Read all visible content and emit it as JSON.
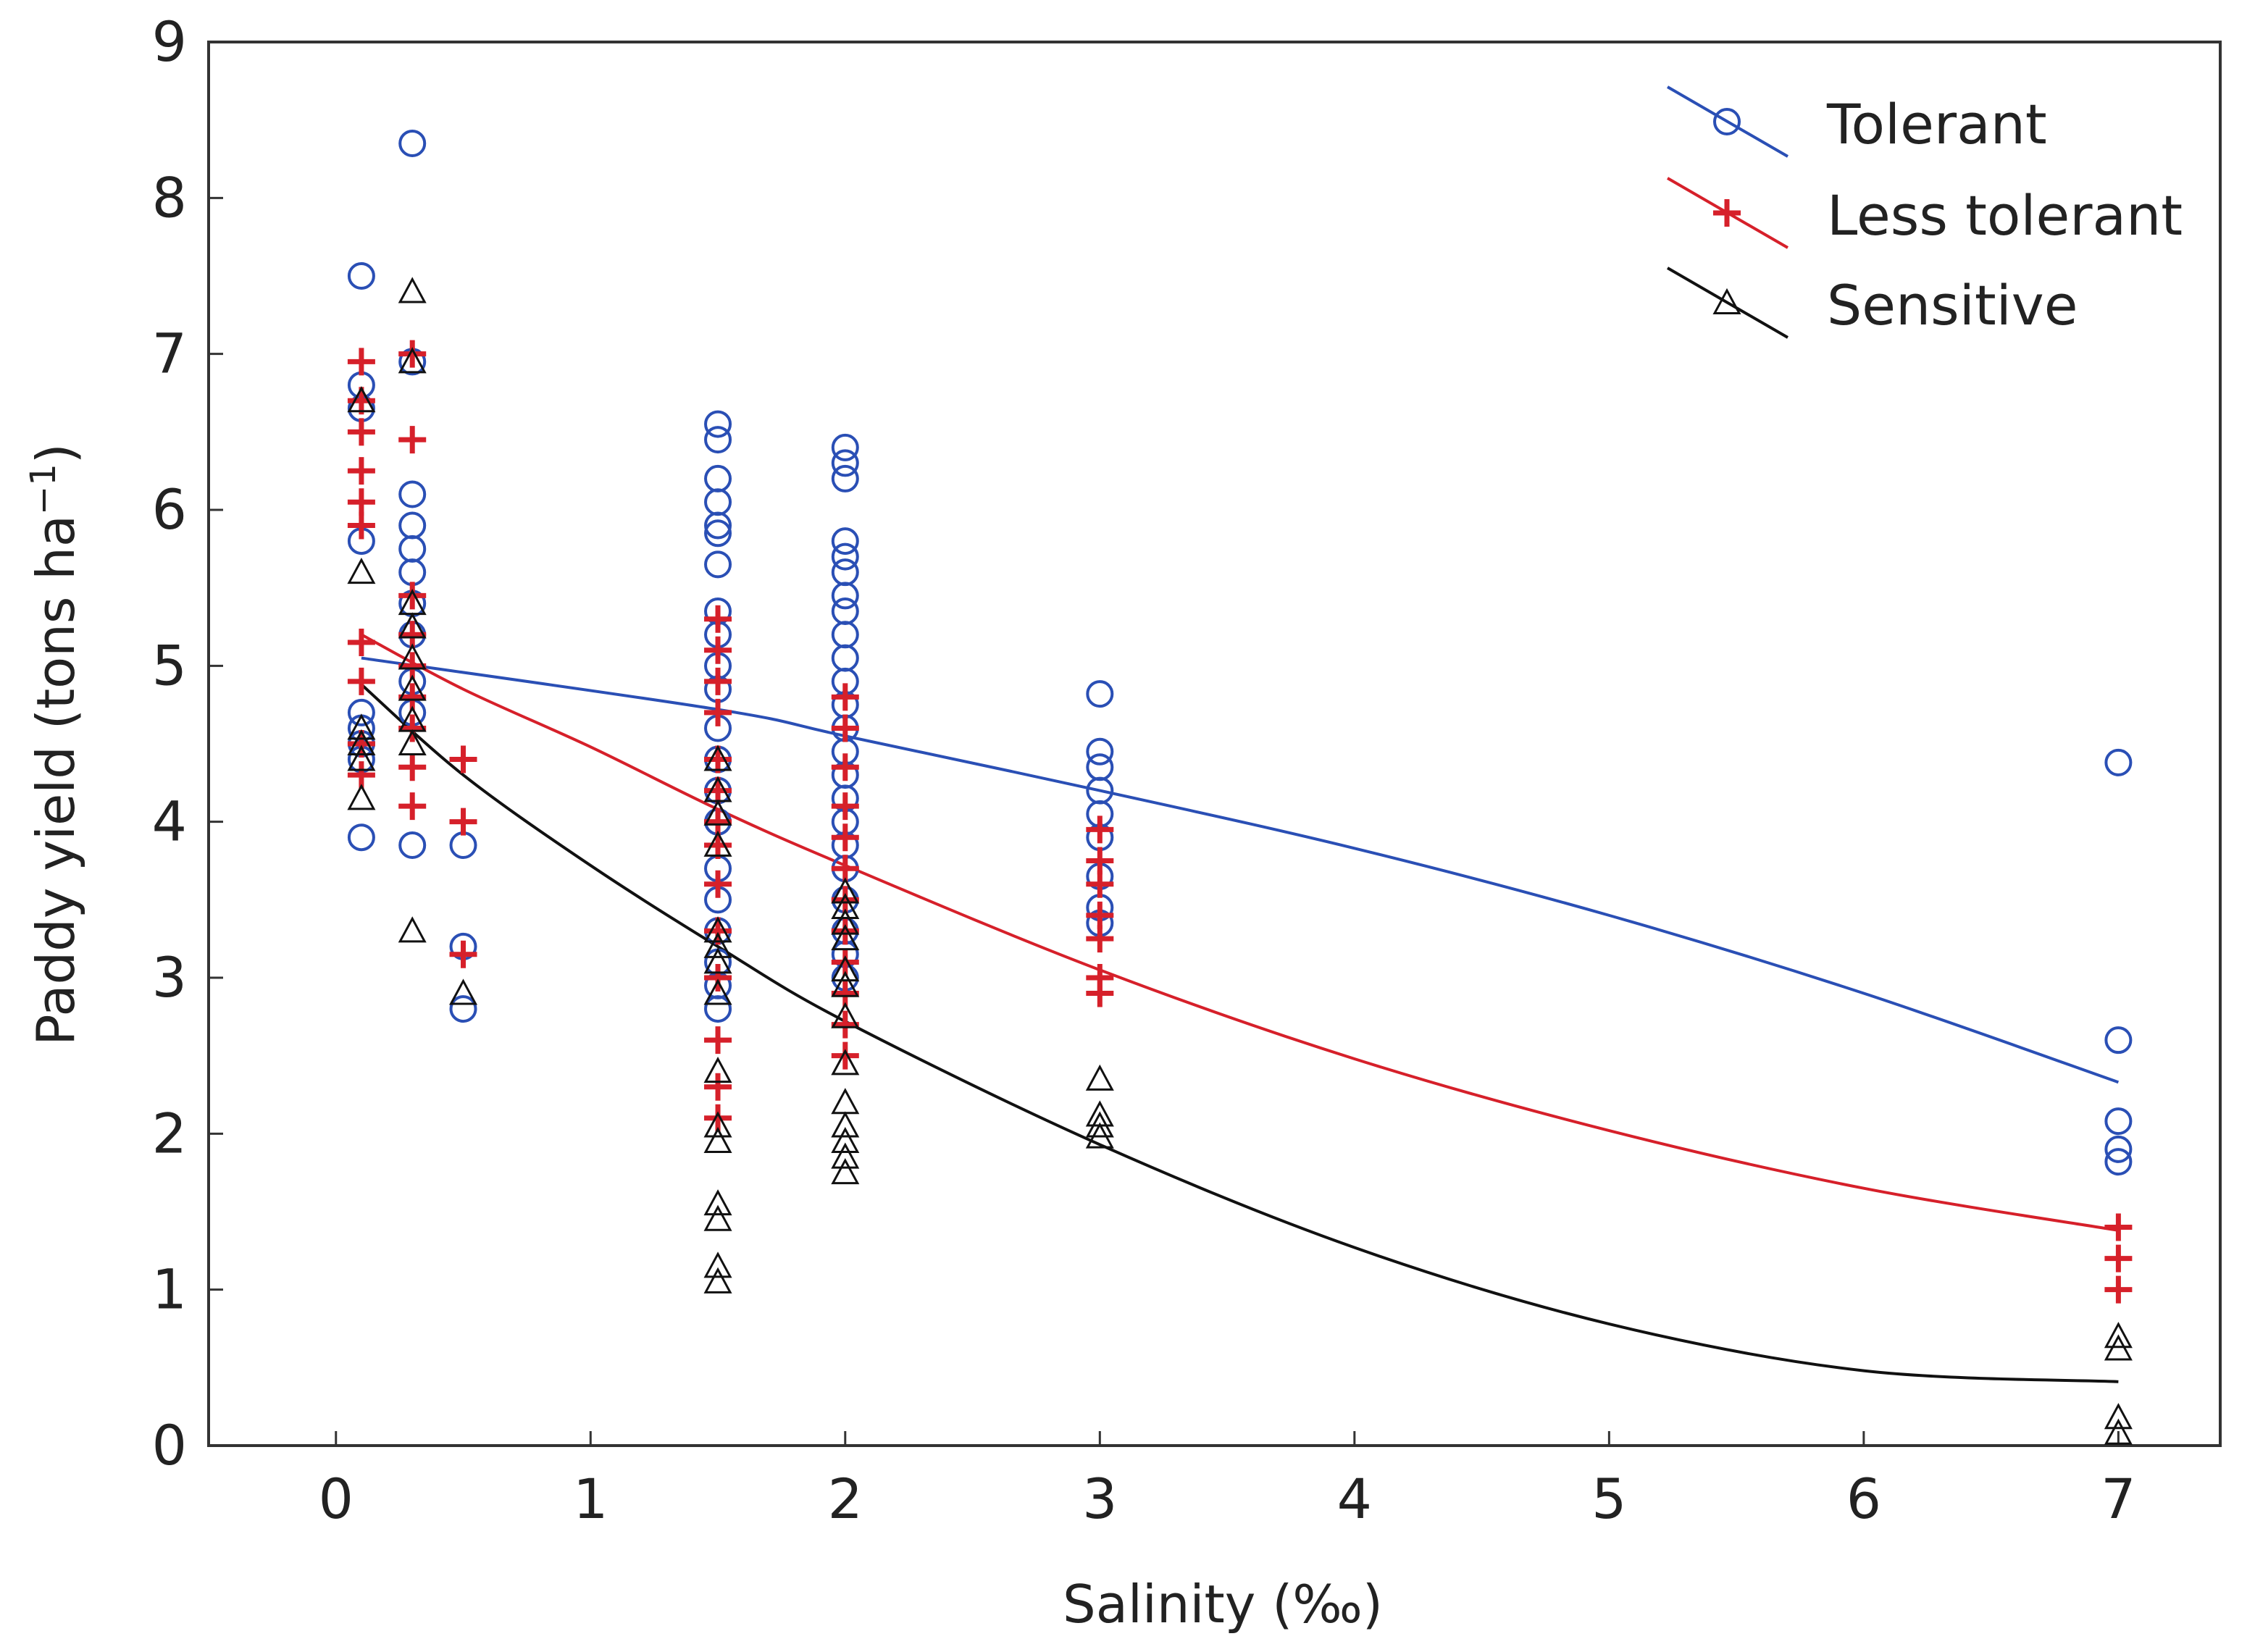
{
  "chart_data": {
    "type": "scatter",
    "title": "",
    "xlabel": "Salinity (‰)",
    "ylabel": "Paddy yield (tons ha",
    "ylabel_superscript": "−1",
    "ylabel_close": ")",
    "xlim": [
      -0.5,
      7.4
    ],
    "ylim": [
      0,
      9
    ],
    "xticks": [
      0,
      1,
      2,
      3,
      4,
      5,
      6,
      7
    ],
    "yticks": [
      0,
      1,
      2,
      3,
      4,
      5,
      6,
      7,
      8,
      9
    ],
    "legend_position": "top-right",
    "series": [
      {
        "name": "Tolerant",
        "color": "#2a4fb5",
        "marker": "circle",
        "points": [
          [
            0.1,
            7.5
          ],
          [
            0.1,
            6.8
          ],
          [
            0.1,
            6.65
          ],
          [
            0.1,
            5.8
          ],
          [
            0.1,
            4.7
          ],
          [
            0.1,
            4.6
          ],
          [
            0.1,
            4.5
          ],
          [
            0.1,
            4.4
          ],
          [
            0.1,
            3.9
          ],
          [
            0.3,
            8.35
          ],
          [
            0.3,
            6.95
          ],
          [
            0.3,
            6.1
          ],
          [
            0.3,
            5.9
          ],
          [
            0.3,
            5.75
          ],
          [
            0.3,
            5.6
          ],
          [
            0.3,
            5.4
          ],
          [
            0.3,
            5.2
          ],
          [
            0.3,
            4.9
          ],
          [
            0.3,
            4.7
          ],
          [
            0.3,
            3.85
          ],
          [
            0.5,
            3.85
          ],
          [
            0.5,
            3.2
          ],
          [
            0.5,
            2.8
          ],
          [
            1.5,
            6.55
          ],
          [
            1.5,
            6.45
          ],
          [
            1.5,
            6.2
          ],
          [
            1.5,
            6.05
          ],
          [
            1.5,
            5.9
          ],
          [
            1.5,
            5.85
          ],
          [
            1.5,
            5.65
          ],
          [
            1.5,
            5.35
          ],
          [
            1.5,
            5.2
          ],
          [
            1.5,
            5.0
          ],
          [
            1.5,
            4.85
          ],
          [
            1.5,
            4.6
          ],
          [
            1.5,
            4.4
          ],
          [
            1.5,
            4.2
          ],
          [
            1.5,
            4.0
          ],
          [
            1.5,
            3.7
          ],
          [
            1.5,
            3.5
          ],
          [
            1.5,
            3.3
          ],
          [
            1.5,
            3.1
          ],
          [
            1.5,
            2.95
          ],
          [
            1.5,
            2.8
          ],
          [
            2.0,
            6.4
          ],
          [
            2.0,
            6.3
          ],
          [
            2.0,
            6.2
          ],
          [
            2.0,
            5.8
          ],
          [
            2.0,
            5.7
          ],
          [
            2.0,
            5.6
          ],
          [
            2.0,
            5.45
          ],
          [
            2.0,
            5.35
          ],
          [
            2.0,
            5.2
          ],
          [
            2.0,
            5.05
          ],
          [
            2.0,
            4.9
          ],
          [
            2.0,
            4.75
          ],
          [
            2.0,
            4.6
          ],
          [
            2.0,
            4.45
          ],
          [
            2.0,
            4.3
          ],
          [
            2.0,
            4.15
          ],
          [
            2.0,
            4.0
          ],
          [
            2.0,
            3.85
          ],
          [
            2.0,
            3.7
          ],
          [
            2.0,
            3.5
          ],
          [
            2.0,
            3.3
          ],
          [
            2.0,
            3.15
          ],
          [
            2.0,
            3.0
          ],
          [
            3.0,
            4.82
          ],
          [
            3.0,
            4.45
          ],
          [
            3.0,
            4.35
          ],
          [
            3.0,
            4.2
          ],
          [
            3.0,
            4.05
          ],
          [
            3.0,
            3.9
          ],
          [
            3.0,
            3.65
          ],
          [
            3.0,
            3.45
          ],
          [
            3.0,
            3.35
          ],
          [
            7.0,
            4.38
          ],
          [
            7.0,
            2.6
          ],
          [
            7.0,
            2.08
          ],
          [
            7.0,
            1.9
          ],
          [
            7.0,
            1.82
          ]
        ],
        "fit": [
          [
            0.1,
            5.05
          ],
          [
            1.5,
            4.72
          ],
          [
            2.0,
            4.55
          ],
          [
            3.0,
            4.2
          ],
          [
            4.0,
            3.83
          ],
          [
            5.0,
            3.4
          ],
          [
            6.0,
            2.9
          ],
          [
            7.0,
            2.33
          ]
        ]
      },
      {
        "name": "Less tolerant",
        "color": "#d6202a",
        "marker": "plus",
        "points": [
          [
            0.1,
            6.95
          ],
          [
            0.1,
            6.7
          ],
          [
            0.1,
            6.5
          ],
          [
            0.1,
            6.25
          ],
          [
            0.1,
            6.05
          ],
          [
            0.1,
            5.9
          ],
          [
            0.1,
            5.15
          ],
          [
            0.1,
            4.9
          ],
          [
            0.1,
            4.5
          ],
          [
            0.1,
            4.3
          ],
          [
            0.3,
            7.0
          ],
          [
            0.3,
            6.45
          ],
          [
            0.3,
            5.45
          ],
          [
            0.3,
            5.2
          ],
          [
            0.3,
            5.0
          ],
          [
            0.3,
            4.8
          ],
          [
            0.3,
            4.6
          ],
          [
            0.3,
            4.35
          ],
          [
            0.3,
            4.1
          ],
          [
            0.5,
            4.4
          ],
          [
            0.5,
            4.0
          ],
          [
            0.5,
            3.15
          ],
          [
            1.5,
            5.3
          ],
          [
            1.5,
            5.1
          ],
          [
            1.5,
            4.9
          ],
          [
            1.5,
            4.7
          ],
          [
            1.5,
            4.4
          ],
          [
            1.5,
            4.2
          ],
          [
            1.5,
            4.0
          ],
          [
            1.5,
            3.85
          ],
          [
            1.5,
            3.6
          ],
          [
            1.5,
            3.3
          ],
          [
            1.5,
            3.0
          ],
          [
            1.5,
            2.6
          ],
          [
            1.5,
            2.3
          ],
          [
            1.5,
            2.1
          ],
          [
            2.0,
            4.8
          ],
          [
            2.0,
            4.6
          ],
          [
            2.0,
            4.35
          ],
          [
            2.0,
            4.1
          ],
          [
            2.0,
            3.9
          ],
          [
            2.0,
            3.7
          ],
          [
            2.0,
            3.5
          ],
          [
            2.0,
            3.3
          ],
          [
            2.0,
            3.1
          ],
          [
            2.0,
            2.9
          ],
          [
            2.0,
            2.7
          ],
          [
            2.0,
            2.5
          ],
          [
            3.0,
            3.95
          ],
          [
            3.0,
            3.75
          ],
          [
            3.0,
            3.6
          ],
          [
            3.0,
            3.4
          ],
          [
            3.0,
            3.25
          ],
          [
            3.0,
            3.0
          ],
          [
            3.0,
            2.9
          ],
          [
            7.0,
            1.4
          ],
          [
            7.0,
            1.2
          ],
          [
            7.0,
            1.0
          ]
        ],
        "fit": [
          [
            0.1,
            5.2
          ],
          [
            0.5,
            4.85
          ],
          [
            1.0,
            4.48
          ],
          [
            1.5,
            4.08
          ],
          [
            2.0,
            3.72
          ],
          [
            3.0,
            3.05
          ],
          [
            4.0,
            2.48
          ],
          [
            5.0,
            2.02
          ],
          [
            6.0,
            1.65
          ],
          [
            7.0,
            1.38
          ]
        ]
      },
      {
        "name": "Sensitive",
        "color": "#111111",
        "marker": "triangle",
        "points": [
          [
            0.1,
            6.7
          ],
          [
            0.1,
            5.6
          ],
          [
            0.1,
            4.6
          ],
          [
            0.1,
            4.5
          ],
          [
            0.1,
            4.4
          ],
          [
            0.1,
            4.15
          ],
          [
            0.3,
            7.4
          ],
          [
            0.3,
            6.95
          ],
          [
            0.3,
            5.4
          ],
          [
            0.3,
            5.25
          ],
          [
            0.3,
            5.05
          ],
          [
            0.3,
            4.85
          ],
          [
            0.3,
            4.65
          ],
          [
            0.3,
            4.5
          ],
          [
            0.3,
            3.3
          ],
          [
            0.5,
            2.9
          ],
          [
            1.5,
            4.4
          ],
          [
            1.5,
            4.2
          ],
          [
            1.5,
            4.05
          ],
          [
            1.5,
            3.85
          ],
          [
            1.5,
            3.3
          ],
          [
            1.5,
            3.2
          ],
          [
            1.5,
            3.1
          ],
          [
            1.5,
            2.9
          ],
          [
            1.5,
            2.4
          ],
          [
            1.5,
            2.05
          ],
          [
            1.5,
            1.95
          ],
          [
            1.5,
            1.55
          ],
          [
            1.5,
            1.45
          ],
          [
            1.5,
            1.15
          ],
          [
            1.5,
            1.05
          ],
          [
            2.0,
            3.55
          ],
          [
            2.0,
            3.45
          ],
          [
            2.0,
            3.35
          ],
          [
            2.0,
            3.25
          ],
          [
            2.0,
            3.05
          ],
          [
            2.0,
            2.95
          ],
          [
            2.0,
            2.75
          ],
          [
            2.0,
            2.45
          ],
          [
            2.0,
            2.2
          ],
          [
            2.0,
            2.05
          ],
          [
            2.0,
            1.95
          ],
          [
            2.0,
            1.85
          ],
          [
            2.0,
            1.75
          ],
          [
            3.0,
            2.35
          ],
          [
            3.0,
            2.12
          ],
          [
            3.0,
            2.05
          ],
          [
            3.0,
            1.98
          ],
          [
            7.0,
            0.7
          ],
          [
            7.0,
            0.62
          ],
          [
            7.0,
            0.18
          ],
          [
            7.0,
            0.08
          ]
        ],
        "fit": [
          [
            0.1,
            4.88
          ],
          [
            0.5,
            4.3
          ],
          [
            1.0,
            3.72
          ],
          [
            1.5,
            3.2
          ],
          [
            2.0,
            2.72
          ],
          [
            3.0,
            1.93
          ],
          [
            4.0,
            1.27
          ],
          [
            5.0,
            0.78
          ],
          [
            6.0,
            0.48
          ],
          [
            7.0,
            0.41
          ]
        ]
      }
    ]
  }
}
